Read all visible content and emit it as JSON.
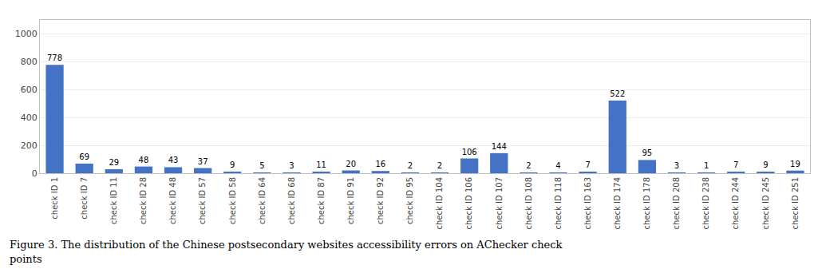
{
  "chart_data": {
    "type": "bar",
    "categories": [
      "check ID 1",
      "check ID 7",
      "check ID 11",
      "check ID 28",
      "check ID 48",
      "check ID 57",
      "check ID 58",
      "check ID 64",
      "check ID 68",
      "check ID 87",
      "check ID 91",
      "check ID 92",
      "check ID 95",
      "check ID 104",
      "check ID 106",
      "check ID 107",
      "check ID 108",
      "check ID 118",
      "check ID 163",
      "check ID 174",
      "check ID 178",
      "check ID 208",
      "check ID 238",
      "check ID 244",
      "check ID 245",
      "check ID 251"
    ],
    "values": [
      778,
      69,
      29,
      48,
      43,
      37,
      9,
      5,
      3,
      11,
      20,
      16,
      2,
      2,
      106,
      144,
      2,
      4,
      7,
      522,
      95,
      3,
      1,
      7,
      9,
      19
    ],
    "color": "#4472C4",
    "ylim": [
      0,
      1100
    ],
    "yticks": [
      0,
      200,
      400,
      600,
      800,
      1000
    ],
    "grid": true,
    "data_labels": true,
    "annotations": [
      "Figure 3. The distribution of the Chinese postsecondary websites accessibility errors on AChecker check",
      "points"
    ]
  }
}
